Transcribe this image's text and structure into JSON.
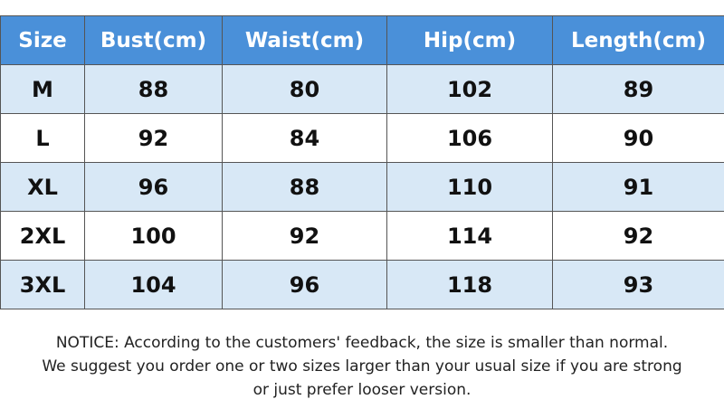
{
  "table": {
    "header": [
      "Size",
      "Bust(cm)",
      "Waist(cm)",
      "Hip(cm)",
      "Length(cm)"
    ],
    "rows": [
      [
        "M",
        88,
        80,
        102,
        89
      ],
      [
        "L",
        92,
        84,
        106,
        90
      ],
      [
        "XL",
        96,
        88,
        110,
        91
      ],
      [
        "2XL",
        100,
        92,
        114,
        92
      ],
      [
        "3XL",
        104,
        96,
        118,
        93
      ]
    ]
  },
  "notice": [
    "NOTICE: According to the customers' feedback, the size is smaller than normal.",
    "We suggest you order one or two sizes larger than your usual size if you are strong",
    "or just prefer looser version."
  ]
}
